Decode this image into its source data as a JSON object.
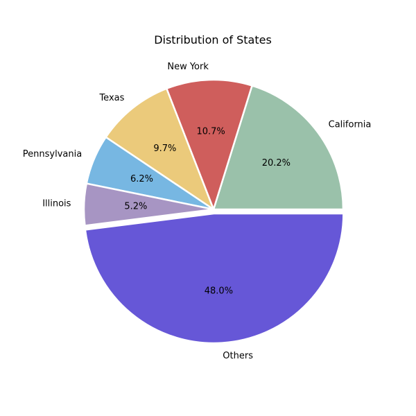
{
  "chart_data": {
    "type": "pie",
    "title": "Distribution of States",
    "categories": [
      "California",
      "New York",
      "Texas",
      "Pennsylvania",
      "Illinois",
      "Others"
    ],
    "values": [
      20.2,
      10.7,
      9.7,
      6.2,
      5.2,
      48.0
    ],
    "value_labels": [
      "20.2%",
      "10.7%",
      "9.7%",
      "6.2%",
      "5.2%",
      "48.0%"
    ],
    "colors": [
      "#9ac1aa",
      "#cf5e5c",
      "#ebca7b",
      "#77b7e2",
      "#a795c3",
      "#6657d7"
    ],
    "exploded": [
      "Others"
    ],
    "start_angle_deg": 0,
    "direction": "counterclockwise"
  }
}
